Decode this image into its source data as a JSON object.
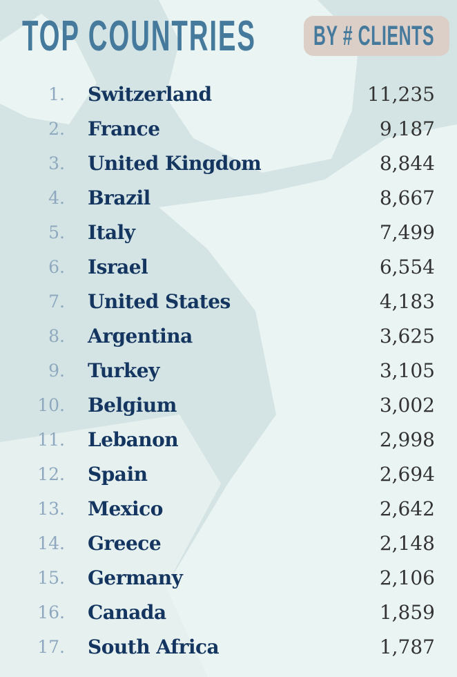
{
  "header": {
    "title": "TOP COUNTRIES",
    "badge": "BY # CLIENTS"
  },
  "colors": {
    "title": "#467a9c",
    "badge_bg": "#dccfc8",
    "name": "#13355f",
    "rank": "#8ea9bf",
    "value": "#333333",
    "sea": "#d4e3e3",
    "land": "#eaf4f3"
  },
  "rows": [
    {
      "rank": "1.",
      "name": "Switzerland",
      "value": "11,235"
    },
    {
      "rank": "2.",
      "name": "France",
      "value": "9,187"
    },
    {
      "rank": "3.",
      "name": "United Kingdom",
      "value": "8,844"
    },
    {
      "rank": "4.",
      "name": "Brazil",
      "value": "8,667"
    },
    {
      "rank": "5.",
      "name": "Italy",
      "value": "7,499"
    },
    {
      "rank": "6.",
      "name": "Israel",
      "value": "6,554"
    },
    {
      "rank": "7.",
      "name": "United States",
      "value": "4,183"
    },
    {
      "rank": "8.",
      "name": "Argentina",
      "value": "3,625"
    },
    {
      "rank": "9.",
      "name": "Turkey",
      "value": "3,105"
    },
    {
      "rank": "10.",
      "name": "Belgium",
      "value": "3,002"
    },
    {
      "rank": "11.",
      "name": "Lebanon",
      "value": "2,998"
    },
    {
      "rank": "12.",
      "name": "Spain",
      "value": "2,694"
    },
    {
      "rank": "13.",
      "name": "Mexico",
      "value": "2,642"
    },
    {
      "rank": "14.",
      "name": "Greece",
      "value": "2,148"
    },
    {
      "rank": "15.",
      "name": "Germany",
      "value": "2,106"
    },
    {
      "rank": "16.",
      "name": "Canada",
      "value": "1,859"
    },
    {
      "rank": "17.",
      "name": "South Africa",
      "value": "1,787"
    }
  ]
}
